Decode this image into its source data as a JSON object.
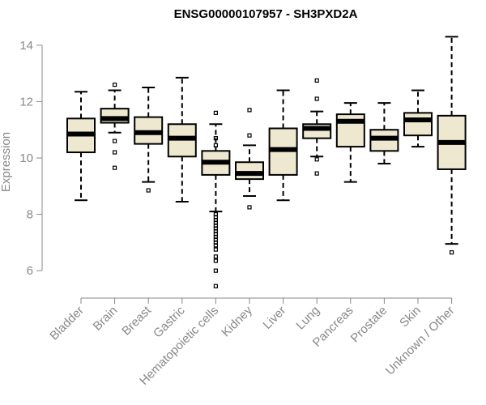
{
  "chart_data": {
    "type": "boxplot",
    "title": "ENSG00000107957 - SH3PXD2A",
    "xlabel": "",
    "ylabel": "Expression",
    "ylim": [
      5.2,
      14.6
    ],
    "yticks": [
      6,
      8,
      10,
      12,
      14
    ],
    "box_fill": "#efe8d0",
    "categories": [
      "Bladder",
      "Brain",
      "Breast",
      "Gastric",
      "Hematopoietic cells",
      "Kidney",
      "Liver",
      "Lung",
      "Pancreas",
      "Prostate",
      "Skin",
      "Unknown / Other"
    ],
    "boxes": [
      {
        "name": "Bladder",
        "whisker_low": 8.5,
        "q1": 10.2,
        "median": 10.85,
        "q3": 11.4,
        "whisker_high": 12.35,
        "outliers": []
      },
      {
        "name": "Brain",
        "whisker_low": 10.9,
        "q1": 11.25,
        "median": 11.4,
        "q3": 11.75,
        "whisker_high": 12.4,
        "outliers": [
          12.6,
          10.6,
          10.2,
          9.65
        ]
      },
      {
        "name": "Breast",
        "whisker_low": 9.15,
        "q1": 10.5,
        "median": 10.9,
        "q3": 11.45,
        "whisker_high": 12.5,
        "outliers": [
          8.85
        ]
      },
      {
        "name": "Gastric",
        "whisker_low": 8.45,
        "q1": 10.05,
        "median": 10.7,
        "q3": 11.2,
        "whisker_high": 12.85,
        "outliers": []
      },
      {
        "name": "Hematopoietic cells",
        "whisker_low": 8.1,
        "q1": 9.4,
        "median": 9.85,
        "q3": 10.25,
        "whisker_high": 11.2,
        "outliers": [
          11.6,
          10.7,
          10.45,
          8.0,
          7.9,
          7.8,
          7.7,
          7.6,
          7.5,
          7.4,
          7.3,
          7.2,
          7.1,
          7.0,
          6.9,
          6.75,
          6.5,
          6.35,
          6.0,
          5.45
        ]
      },
      {
        "name": "Kidney",
        "whisker_low": 8.65,
        "q1": 9.25,
        "median": 9.45,
        "q3": 9.85,
        "whisker_high": 10.45,
        "outliers": [
          11.7,
          10.8,
          8.25
        ]
      },
      {
        "name": "Liver",
        "whisker_low": 8.5,
        "q1": 9.4,
        "median": 10.3,
        "q3": 11.05,
        "whisker_high": 12.4,
        "outliers": []
      },
      {
        "name": "Lung",
        "whisker_low": 10.05,
        "q1": 10.7,
        "median": 11.05,
        "q3": 11.2,
        "whisker_high": 11.65,
        "outliers": [
          12.75,
          12.1,
          9.95,
          9.45
        ]
      },
      {
        "name": "Pancreas",
        "whisker_low": 9.15,
        "q1": 10.4,
        "median": 11.3,
        "q3": 11.55,
        "whisker_high": 11.95,
        "outliers": []
      },
      {
        "name": "Prostate",
        "whisker_low": 9.8,
        "q1": 10.25,
        "median": 10.7,
        "q3": 11.0,
        "whisker_high": 11.95,
        "outliers": []
      },
      {
        "name": "Skin",
        "whisker_low": 10.4,
        "q1": 10.8,
        "median": 11.35,
        "q3": 11.6,
        "whisker_high": 12.4,
        "outliers": []
      },
      {
        "name": "Unknown / Other",
        "whisker_low": 6.95,
        "q1": 9.6,
        "median": 10.55,
        "q3": 11.5,
        "whisker_high": 14.3,
        "outliers": [
          6.65
        ]
      }
    ]
  }
}
